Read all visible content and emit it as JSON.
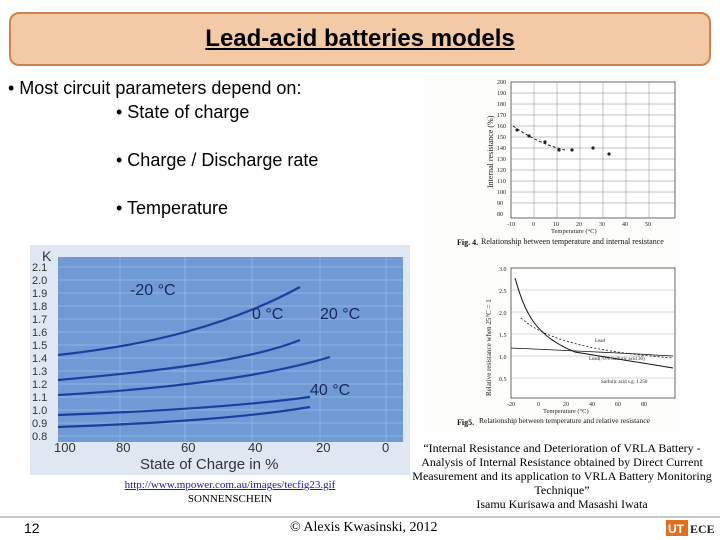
{
  "title": "Lead-acid batteries models",
  "bullets": {
    "main": "• Most circuit parameters depend on:",
    "sub1": "• State of charge",
    "sub2": "• Charge / Discharge rate",
    "sub3": "• Temperature"
  },
  "left_chart": {
    "axis_title_y": "K",
    "y_ticks": [
      "2.1",
      "2.0",
      "1.9",
      "1.8",
      "1.7",
      "1.6",
      "1.5",
      "1.4",
      "1.3",
      "1.2",
      "1.1",
      "1.0",
      "0.9",
      "0.8"
    ],
    "x_ticks": [
      "100",
      "80",
      "60",
      "40",
      "20",
      "0"
    ],
    "x_label": "State of Charge in %",
    "curve_labels": [
      "-20 °C",
      "0 °C",
      "20 °C",
      "40 °C"
    ],
    "colors": {
      "background": "#6f9ad6",
      "curve": "#1b3f9e",
      "grid": "#9cbbe8"
    }
  },
  "right_fig4": {
    "y_label": "Internal resistance (%)",
    "y_ticks": [
      "200",
      "190",
      "180",
      "170",
      "160",
      "150",
      "140",
      "130",
      "120",
      "110",
      "100",
      "90",
      "80"
    ],
    "x_ticks": [
      "-10",
      "0",
      "10",
      "20",
      "30",
      "40",
      "50"
    ],
    "x_label": "Temperature (°C)",
    "caption_bold": "Fig. 4.",
    "caption": "Relationship between temperature and internal resistance"
  },
  "right_fig5": {
    "y_label": "Relative resistance when 25°C = 1",
    "y_ticks": [
      "3.0",
      "2.5",
      "2.0",
      "1.5",
      "1.0",
      "0.5"
    ],
    "x_ticks": [
      "-20",
      "0",
      "20",
      "40",
      "60",
      "80"
    ],
    "x_label": "Temperature (°C)",
    "legend": [
      "Lead",
      "Lead(70% Sulfuric acid 30)",
      "Sulfuric acid s.g. 1.250"
    ],
    "caption_bold": "Fig5.",
    "caption": "Relationship between temperature and relative resistance"
  },
  "source_left": {
    "url": "http://www.mpower.com.au/images/tecfig23.gif",
    "company": "SONNENSCHEIN"
  },
  "source_right": {
    "line1": "“Internal Resistance and Deterioration of VRLA Battery -",
    "line2": "Analysis of Internal Resistance obtained by Direct Current",
    "line3": "Measurement and its application to VRLA Battery Monitoring",
    "line4": "Technique”",
    "line5": "Isamu Kurisawa and Masashi Iwata"
  },
  "footer": {
    "page_number": "12",
    "copyright": "© Alexis Kwasinski, 2012"
  },
  "logo": {
    "left": "UT",
    "right": "ECE"
  }
}
